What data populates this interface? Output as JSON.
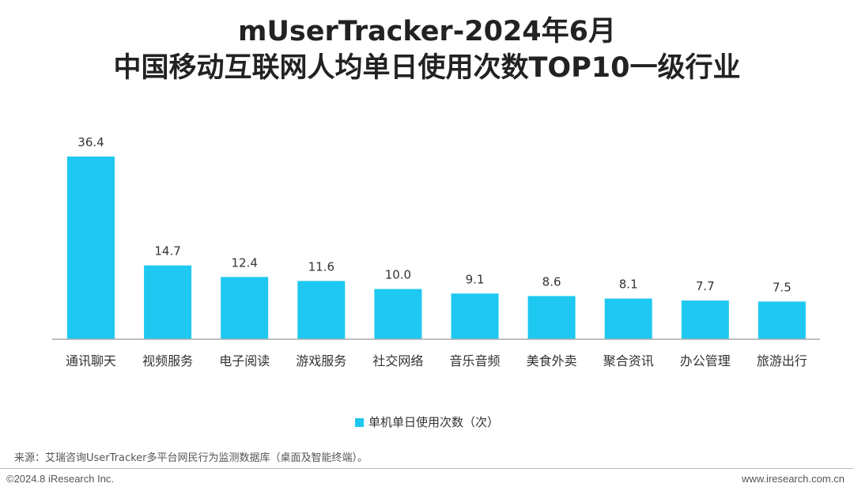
{
  "chart_data": {
    "type": "bar",
    "title": [
      "mUserTracker-2024年6月",
      "中国移动互联网人均单日使用次数TOP10一级行业"
    ],
    "categories": [
      "通讯聊天",
      "视频服务",
      "电子阅读",
      "游戏服务",
      "社交网络",
      "音乐音频",
      "美食外卖",
      "聚合资讯",
      "办公管理",
      "旅游出行"
    ],
    "series": [
      {
        "name": "单机单日使用次数（次）",
        "values": [
          36.4,
          14.7,
          12.4,
          11.6,
          10.0,
          9.1,
          8.6,
          8.1,
          7.7,
          7.5
        ],
        "color": "#1EC8F0"
      }
    ],
    "data_labels": [
      "36.4",
      "14.7",
      "12.4",
      "11.6",
      "10.0",
      "9.1",
      "8.6",
      "8.1",
      "7.7",
      "7.5"
    ],
    "grid": false,
    "legend": "bottom"
  },
  "footer": {
    "source": "来源：艾瑞咨询UserTracker多平台网民行为监测数据库（桌面及智能终端）。",
    "copyright": "©2024.8 iResearch Inc.",
    "website": "www.iresearch.com.cn"
  }
}
